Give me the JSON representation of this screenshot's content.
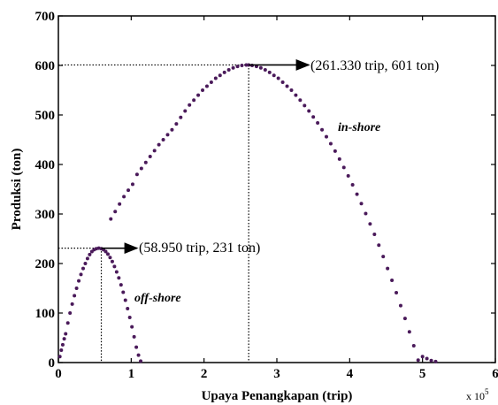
{
  "chart_data": {
    "type": "scatter",
    "title": "",
    "xlabel": "Upaya Penangkapan (trip)",
    "ylabel": "Produksi (ton)",
    "x_scale_label": "x 10",
    "x_scale_exponent": "5",
    "xlim": [
      0,
      6
    ],
    "ylim": [
      0,
      700
    ],
    "x_ticks": [
      "0",
      "1",
      "2",
      "3",
      "4",
      "5",
      "6"
    ],
    "y_ticks": [
      "0",
      "100",
      "200",
      "300",
      "400",
      "500",
      "600",
      "700"
    ],
    "grid": false,
    "legend": "none",
    "series": [
      {
        "name": "off-shore",
        "color": "#4a1a5a",
        "x": [
          0.02,
          0.04,
          0.06,
          0.08,
          0.1,
          0.13,
          0.16,
          0.19,
          0.22,
          0.25,
          0.28,
          0.31,
          0.34,
          0.37,
          0.4,
          0.43,
          0.46,
          0.49,
          0.52,
          0.555,
          0.59,
          0.62,
          0.65,
          0.68,
          0.71,
          0.74,
          0.77,
          0.8,
          0.83,
          0.86,
          0.89,
          0.92,
          0.95,
          0.98,
          1.01,
          1.04,
          1.07,
          1.1,
          1.13
        ],
        "y": [
          12,
          25,
          36,
          48,
          58,
          80,
          100,
          118,
          135,
          150,
          165,
          178,
          190,
          200,
          210,
          218,
          224,
          228,
          230,
          231,
          230,
          228,
          224,
          219,
          212,
          204,
          194,
          183,
          171,
          157,
          142,
          126,
          109,
          91,
          72,
          52,
          31,
          15,
          3
        ]
      },
      {
        "name": "in-shore",
        "color": "#4a1a5a",
        "x": [
          0.72,
          0.78,
          0.84,
          0.9,
          0.96,
          1.02,
          1.08,
          1.14,
          1.2,
          1.26,
          1.32,
          1.38,
          1.44,
          1.5,
          1.56,
          1.62,
          1.68,
          1.74,
          1.8,
          1.86,
          1.92,
          1.98,
          2.04,
          2.1,
          2.16,
          2.22,
          2.28,
          2.34,
          2.4,
          2.46,
          2.52,
          2.58,
          2.613,
          2.66,
          2.72,
          2.78,
          2.84,
          2.9,
          2.96,
          3.02,
          3.08,
          3.14,
          3.2,
          3.26,
          3.32,
          3.38,
          3.44,
          3.5,
          3.56,
          3.62,
          3.68,
          3.74,
          3.8,
          3.86,
          3.92,
          3.98,
          4.04,
          4.1,
          4.16,
          4.22,
          4.28,
          4.34,
          4.4,
          4.46,
          4.52,
          4.58,
          4.64,
          4.7,
          4.76,
          4.82,
          4.88,
          4.94,
          5.0,
          5.06,
          5.12,
          5.18
        ],
        "y": [
          290,
          305,
          320,
          335,
          348,
          360,
          380,
          392,
          404,
          416,
          428,
          440,
          450,
          460,
          470,
          482,
          495,
          508,
          520,
          530,
          540,
          550,
          558,
          566,
          574,
          580,
          586,
          591,
          595,
          598,
          600,
          601,
          601,
          600,
          598,
          595,
          591,
          586,
          580,
          574,
          566,
          558,
          550,
          540,
          530,
          519,
          508,
          496,
          484,
          470,
          456,
          442,
          427,
          411,
          394,
          377,
          359,
          340,
          321,
          301,
          280,
          259,
          237,
          214,
          190,
          166,
          141,
          115,
          89,
          62,
          34,
          5,
          12,
          8,
          4,
          2
        ]
      }
    ],
    "annotations": [
      {
        "text": "(261.330 trip, 601 ton)",
        "x": 2.6133,
        "y": 601
      },
      {
        "text": "(58.950 trip, 231 ton)",
        "x": 0.5895,
        "y": 231
      },
      {
        "text": "in-shore",
        "series": "in-shore"
      },
      {
        "text": "off-shore",
        "series": "off-shore"
      }
    ]
  }
}
